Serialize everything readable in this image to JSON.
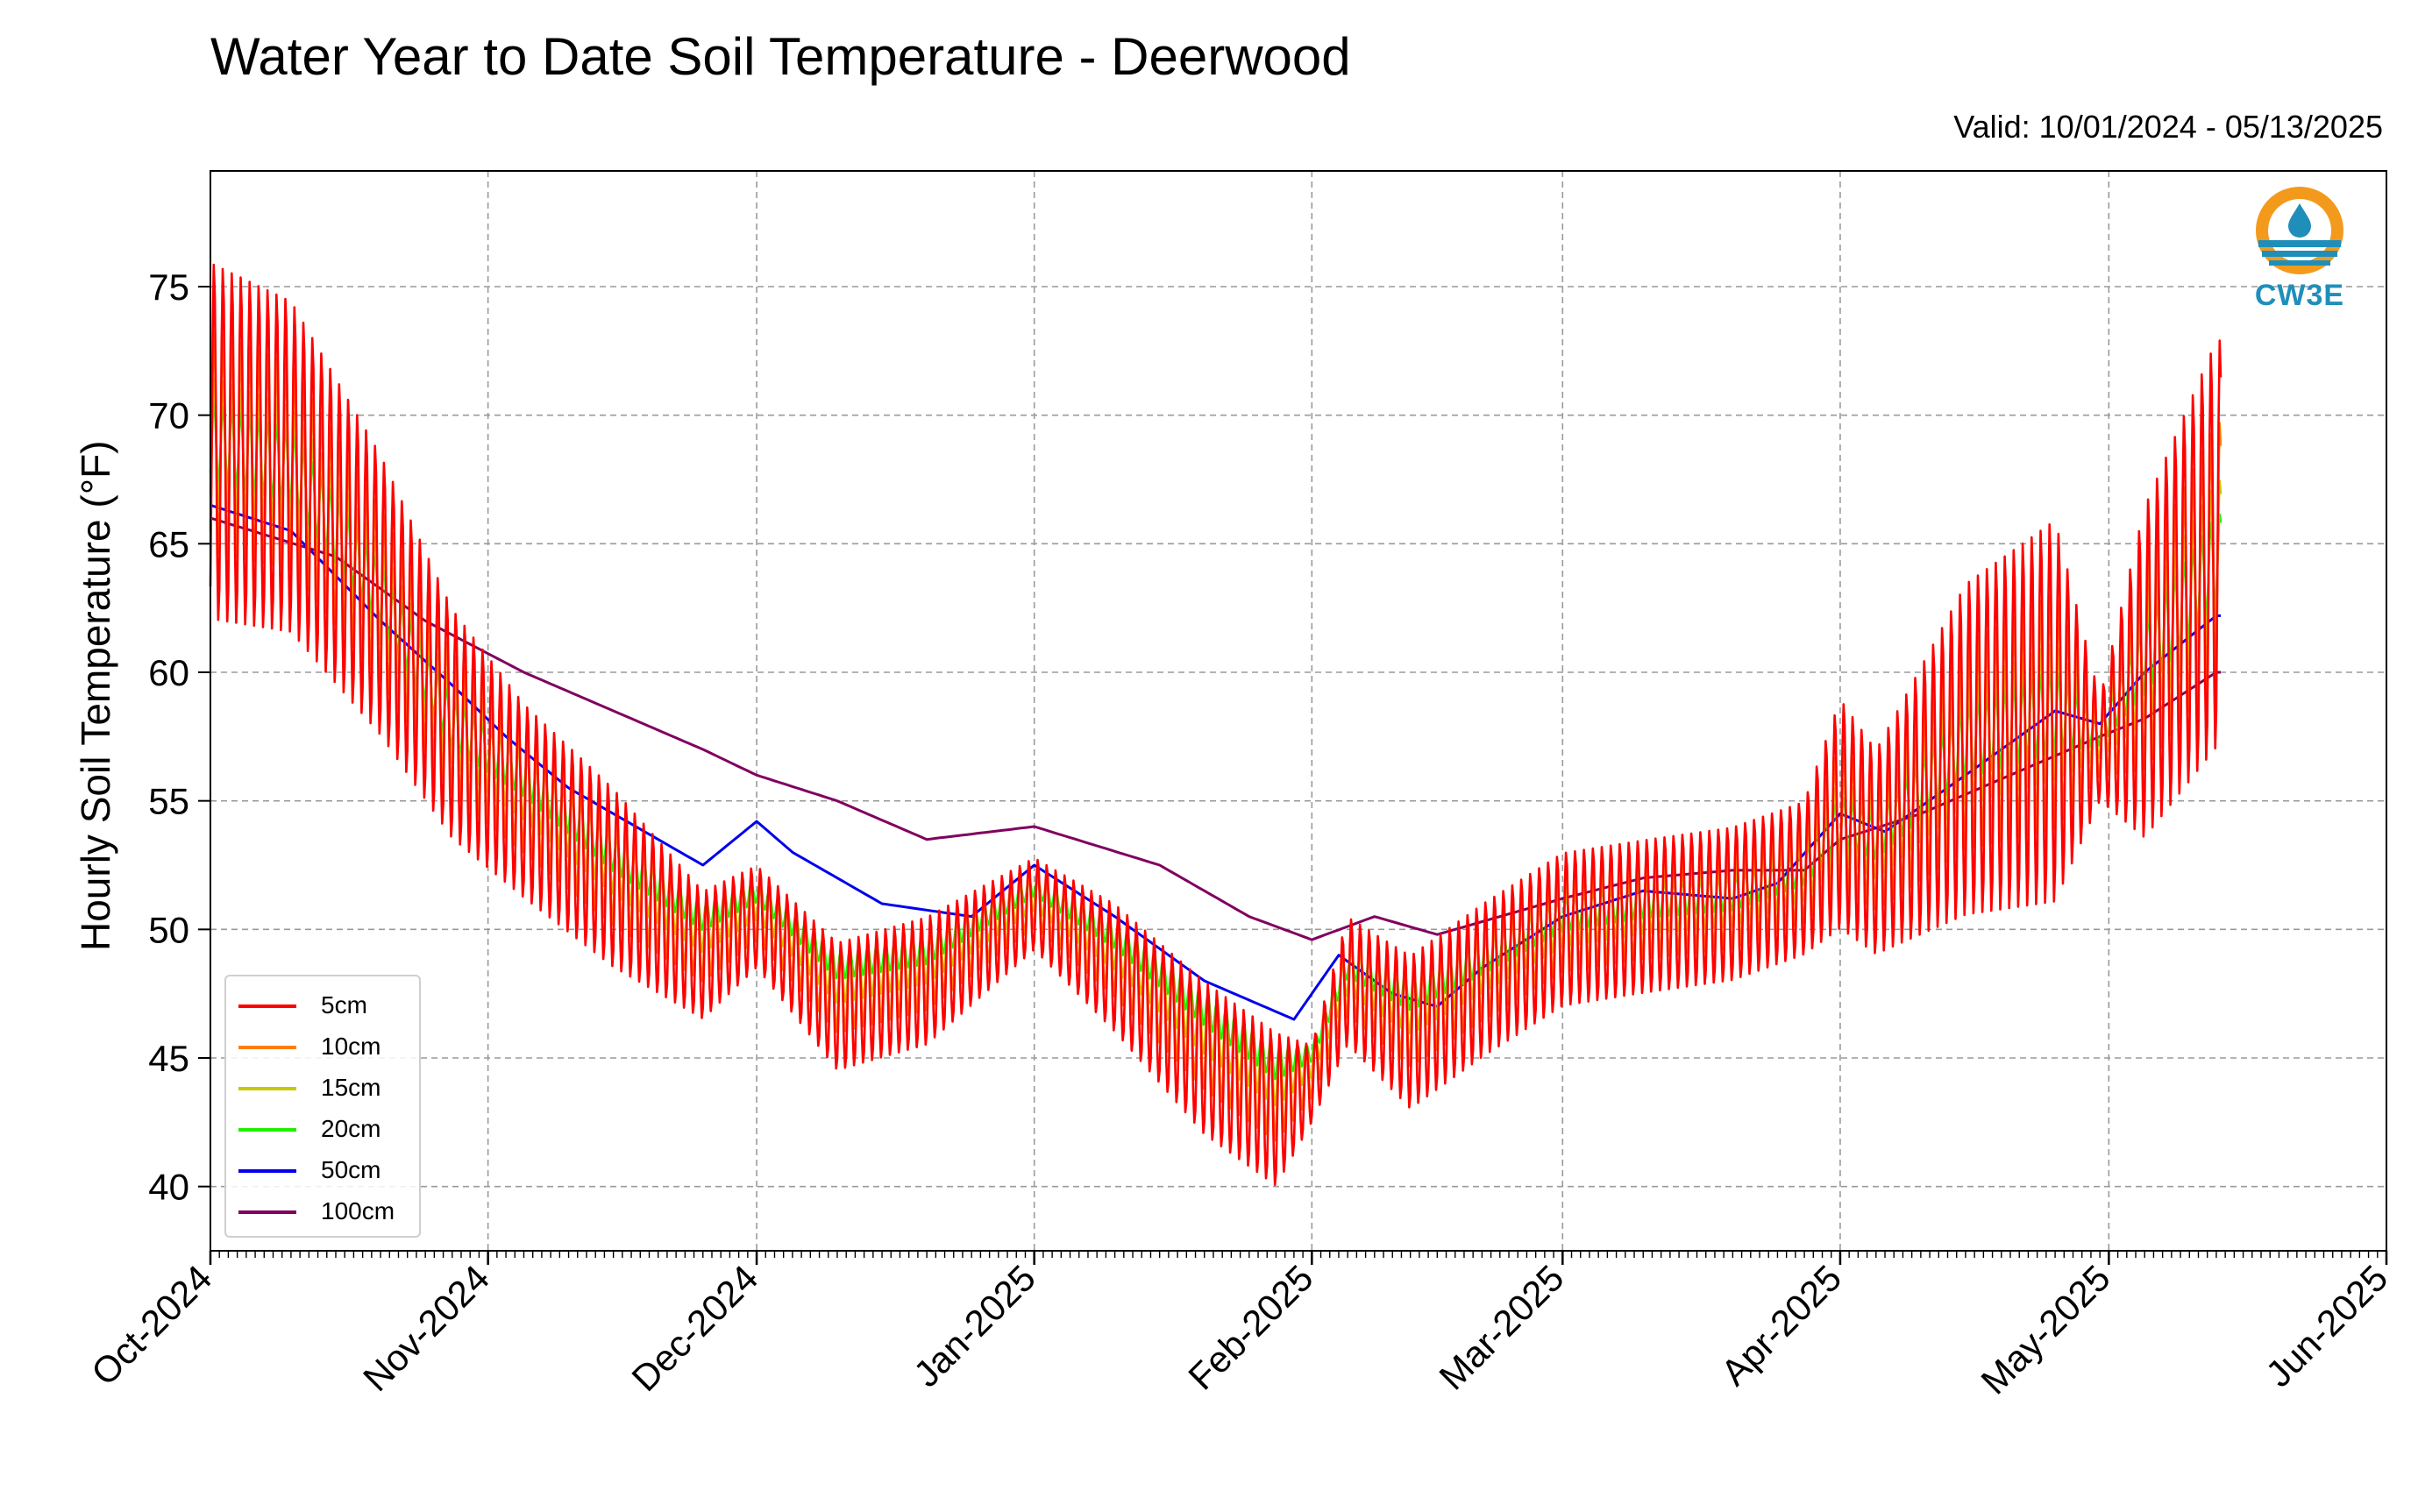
{
  "chart_data": {
    "type": "line",
    "title": "Water Year to Date Soil Temperature - Deerwood",
    "subtitle": "Valid: 10/01/2024 - 05/13/2025",
    "ylabel": "Hourly Soil Temperature (°F)",
    "xlabel": "",
    "ylim": [
      37.5,
      79.5
    ],
    "xlim": [
      "2024-10-01",
      "2025-06-01"
    ],
    "y_ticks": [
      40,
      45,
      50,
      55,
      60,
      65,
      70,
      75
    ],
    "x_ticks": [
      "2024-10-01",
      "2024-11-01",
      "2024-12-01",
      "2025-01-01",
      "2025-02-01",
      "2025-03-01",
      "2025-04-01",
      "2025-05-01",
      "2025-06-01"
    ],
    "x_tick_labels": [
      "Oct-2024",
      "Nov-2024",
      "Dec-2024",
      "Jan-2025",
      "Feb-2025",
      "Mar-2025",
      "Apr-2025",
      "May-2025",
      "Jun-2025"
    ],
    "grid": true,
    "legend_position": "lower-left",
    "logo_text": "CW3E",
    "colors": {
      "5cm": "#ff0000",
      "10cm": "#ff8000",
      "15cm": "#c8c800",
      "20cm": "#22ee00",
      "50cm": "#0000ee",
      "100cm": "#800060"
    },
    "series": [
      {
        "name": "5cm",
        "color": "#ff0000",
        "amp_scale": 1.0,
        "x": [
          "2024-10-01",
          "2024-10-10",
          "2024-10-20",
          "2024-10-28",
          "2024-11-05",
          "2024-11-15",
          "2024-11-25",
          "2024-12-01",
          "2024-12-10",
          "2024-12-20",
          "2025-01-01",
          "2025-01-10",
          "2025-01-20",
          "2025-01-28",
          "2025-02-01",
          "2025-02-05",
          "2025-02-12",
          "2025-02-20",
          "2025-03-01",
          "2025-03-10",
          "2025-03-20",
          "2025-03-28",
          "2025-04-01",
          "2025-04-05",
          "2025-04-15",
          "2025-04-25",
          "2025-04-30",
          "2025-05-05",
          "2025-05-13"
        ],
        "mean": [
          69,
          68,
          63,
          58,
          55,
          52,
          49,
          50.5,
          47,
          48,
          51,
          48.5,
          45,
          43,
          44,
          48,
          46,
          48,
          50,
          50.5,
          51,
          52,
          54.5,
          53,
          57,
          58.5,
          57,
          60,
          65
        ],
        "amp": [
          7,
          6.5,
          5.5,
          4.5,
          3.8,
          3.5,
          2.5,
          2.0,
          2.5,
          2.5,
          1.8,
          2.5,
          3.0,
          3.0,
          1.5,
          2.5,
          3.0,
          3.0,
          3.0,
          3.0,
          3.0,
          3.0,
          4.5,
          4.0,
          6.5,
          7.5,
          2.0,
          6.5,
          8.0
        ]
      },
      {
        "name": "10cm",
        "color": "#ff8000",
        "amp_scale": 0.62,
        "x": [
          "2024-10-01",
          "2024-10-10",
          "2024-10-20",
          "2024-10-28",
          "2024-11-05",
          "2024-11-15",
          "2024-11-25",
          "2024-12-01",
          "2024-12-10",
          "2024-12-20",
          "2025-01-01",
          "2025-01-10",
          "2025-01-20",
          "2025-01-28",
          "2025-02-01",
          "2025-02-05",
          "2025-02-12",
          "2025-02-20",
          "2025-03-01",
          "2025-03-10",
          "2025-03-20",
          "2025-03-28",
          "2025-04-01",
          "2025-04-05",
          "2025-04-15",
          "2025-04-25",
          "2025-04-30",
          "2025-05-05",
          "2025-05-13"
        ],
        "mean": [
          69,
          68,
          63,
          58,
          55.3,
          52.3,
          49.5,
          50.8,
          47.5,
          48.4,
          51.2,
          48.9,
          45.6,
          43.6,
          44.4,
          48.2,
          46.5,
          48.3,
          50.2,
          50.7,
          51.1,
          52.1,
          54.4,
          53.2,
          57.1,
          58.5,
          57.2,
          60.2,
          64.8
        ],
        "amp": [
          7,
          6.5,
          5.5,
          4.5,
          3.8,
          3.5,
          2.5,
          2.0,
          2.5,
          2.5,
          1.8,
          2.5,
          3.0,
          3.0,
          1.5,
          2.5,
          3.0,
          3.0,
          3.0,
          3.0,
          3.0,
          3.0,
          4.5,
          4.0,
          6.5,
          7.5,
          2.0,
          6.5,
          8.0
        ]
      },
      {
        "name": "15cm",
        "color": "#c8c800",
        "amp_scale": 0.36,
        "x": [
          "2024-10-01",
          "2024-10-10",
          "2024-10-20",
          "2024-10-28",
          "2024-11-05",
          "2024-11-15",
          "2024-11-25",
          "2024-12-01",
          "2024-12-10",
          "2024-12-20",
          "2025-01-01",
          "2025-01-10",
          "2025-01-20",
          "2025-01-28",
          "2025-02-01",
          "2025-02-05",
          "2025-02-12",
          "2025-02-20",
          "2025-03-01",
          "2025-03-10",
          "2025-03-20",
          "2025-03-28",
          "2025-04-01",
          "2025-04-05",
          "2025-04-15",
          "2025-04-25",
          "2025-04-30",
          "2025-05-05",
          "2025-05-13"
        ],
        "mean": [
          69,
          68,
          63,
          58,
          55.6,
          52.6,
          50.0,
          51.1,
          48.0,
          48.8,
          51.4,
          49.3,
          46.2,
          44.2,
          44.8,
          48.4,
          47.0,
          48.6,
          50.4,
          50.9,
          51.2,
          52.2,
          54.3,
          53.4,
          57.2,
          58.5,
          57.4,
          60.4,
          64.6
        ],
        "amp": [
          7,
          6.5,
          5.5,
          4.5,
          3.8,
          3.5,
          2.5,
          2.0,
          2.5,
          2.5,
          1.8,
          2.5,
          3.0,
          3.0,
          1.5,
          2.5,
          3.0,
          3.0,
          3.0,
          3.0,
          3.0,
          3.0,
          4.5,
          4.0,
          6.5,
          7.5,
          2.0,
          6.5,
          8.0
        ]
      },
      {
        "name": "20cm",
        "color": "#22ee00",
        "amp_scale": 0.22,
        "x": [
          "2024-10-01",
          "2024-10-10",
          "2024-10-20",
          "2024-10-28",
          "2024-11-05",
          "2024-11-15",
          "2024-11-25",
          "2024-12-01",
          "2024-12-10",
          "2024-12-20",
          "2025-01-01",
          "2025-01-10",
          "2025-01-20",
          "2025-01-28",
          "2025-02-01",
          "2025-02-05",
          "2025-02-12",
          "2025-02-20",
          "2025-03-01",
          "2025-03-10",
          "2025-03-20",
          "2025-03-28",
          "2025-04-01",
          "2025-04-05",
          "2025-04-15",
          "2025-04-25",
          "2025-04-30",
          "2025-05-05",
          "2025-05-13"
        ],
        "mean": [
          69,
          68,
          63,
          58,
          56.0,
          53.0,
          50.5,
          51.5,
          48.6,
          49.2,
          51.7,
          49.8,
          46.9,
          44.8,
          45.2,
          48.7,
          47.5,
          48.9,
          50.6,
          51.1,
          51.4,
          52.4,
          54.2,
          53.6,
          57.3,
          58.5,
          57.6,
          60.6,
          64.4
        ],
        "amp": [
          7,
          6.5,
          5.5,
          4.5,
          3.8,
          3.5,
          2.5,
          2.0,
          2.5,
          2.5,
          1.8,
          2.5,
          3.0,
          3.0,
          1.5,
          2.5,
          3.0,
          3.0,
          3.0,
          3.0,
          3.0,
          3.0,
          4.5,
          4.0,
          6.5,
          7.5,
          2.0,
          6.5,
          8.0
        ]
      },
      {
        "name": "50cm",
        "color": "#0000ee",
        "x": [
          "2024-10-01",
          "2024-10-10",
          "2024-10-20",
          "2024-10-28",
          "2024-11-03",
          "2024-11-10",
          "2024-11-20",
          "2024-11-25",
          "2024-12-01",
          "2024-12-05",
          "2024-12-15",
          "2024-12-25",
          "2025-01-01",
          "2025-01-10",
          "2025-01-20",
          "2025-01-30",
          "2025-02-04",
          "2025-02-10",
          "2025-02-15",
          "2025-02-20",
          "2025-03-01",
          "2025-03-10",
          "2025-03-20",
          "2025-03-25",
          "2025-04-01",
          "2025-04-06",
          "2025-04-15",
          "2025-04-25",
          "2025-04-30",
          "2025-05-05",
          "2025-05-13"
        ],
        "values": [
          66.5,
          65.5,
          62,
          59.5,
          57.5,
          55.5,
          53.5,
          52.5,
          54.2,
          53,
          51,
          50.5,
          52.5,
          50.5,
          48,
          46.5,
          49,
          47.5,
          47,
          48.5,
          50.5,
          51.5,
          51.2,
          51.8,
          54.5,
          53.8,
          56,
          58.5,
          58,
          60,
          62.2
        ]
      },
      {
        "name": "100cm",
        "color": "#800060",
        "x": [
          "2024-10-01",
          "2024-10-15",
          "2024-10-25",
          "2024-11-05",
          "2024-11-15",
          "2024-11-25",
          "2024-12-01",
          "2024-12-10",
          "2024-12-20",
          "2025-01-01",
          "2025-01-15",
          "2025-01-25",
          "2025-02-01",
          "2025-02-08",
          "2025-02-15",
          "2025-02-20",
          "2025-03-01",
          "2025-03-10",
          "2025-03-20",
          "2025-03-28",
          "2025-04-01",
          "2025-04-10",
          "2025-04-20",
          "2025-04-30",
          "2025-05-05",
          "2025-05-13"
        ],
        "values": [
          66,
          64.5,
          62,
          60,
          58.5,
          57,
          56,
          55,
          53.5,
          54,
          52.5,
          50.5,
          49.6,
          50.5,
          49.8,
          50.3,
          51.2,
          52,
          52.3,
          52.3,
          53.5,
          54.5,
          56,
          57.5,
          58.2,
          60
        ]
      }
    ]
  }
}
